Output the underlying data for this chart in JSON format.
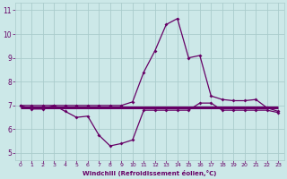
{
  "xlabel": "Windchill (Refroidissement éolien,°C)",
  "bg_color": "#cce8e8",
  "grid_color": "#aacccc",
  "line_color": "#660066",
  "xlim": [
    -0.5,
    23.5
  ],
  "ylim": [
    4.7,
    11.3
  ],
  "yticks": [
    5,
    6,
    7,
    8,
    9,
    10,
    11
  ],
  "xticks": [
    0,
    1,
    2,
    3,
    4,
    5,
    6,
    7,
    8,
    9,
    10,
    11,
    12,
    13,
    14,
    15,
    16,
    17,
    18,
    19,
    20,
    21,
    22,
    23
  ],
  "series_flat_x": [
    0,
    1,
    2,
    3,
    4,
    5,
    6,
    7,
    8,
    9,
    10,
    11,
    12,
    13,
    14,
    15,
    16,
    17,
    18,
    19,
    20,
    21,
    22,
    23
  ],
  "series_flat_y": [
    6.9,
    6.9,
    6.9,
    6.9,
    6.9,
    6.9,
    6.9,
    6.9,
    6.9,
    6.9,
    6.9,
    6.9,
    6.9,
    6.9,
    6.9,
    6.9,
    6.9,
    6.9,
    6.9,
    6.9,
    6.9,
    6.9,
    6.9,
    6.9
  ],
  "series_dip_x": [
    0,
    1,
    2,
    3,
    4,
    5,
    6,
    7,
    8,
    9,
    10,
    11,
    12,
    13,
    14,
    15,
    16,
    17,
    18,
    19,
    20,
    21,
    22,
    23
  ],
  "series_dip_y": [
    7.0,
    6.85,
    6.85,
    7.0,
    6.75,
    6.5,
    6.55,
    5.75,
    5.3,
    5.4,
    5.55,
    6.8,
    6.8,
    6.8,
    6.8,
    6.8,
    7.1,
    7.1,
    6.8,
    6.8,
    6.8,
    6.8,
    6.8,
    6.7
  ],
  "series_peak_x": [
    0,
    1,
    2,
    3,
    4,
    5,
    6,
    7,
    8,
    9,
    10,
    11,
    12,
    13,
    14,
    15,
    16,
    17,
    18,
    19,
    20,
    21,
    22,
    23
  ],
  "series_peak_y": [
    7.0,
    7.0,
    7.0,
    7.0,
    7.0,
    7.0,
    7.0,
    7.0,
    7.0,
    7.0,
    7.15,
    8.4,
    9.3,
    10.4,
    10.65,
    9.0,
    9.1,
    7.4,
    7.25,
    7.2,
    7.2,
    7.25,
    6.9,
    6.75
  ]
}
